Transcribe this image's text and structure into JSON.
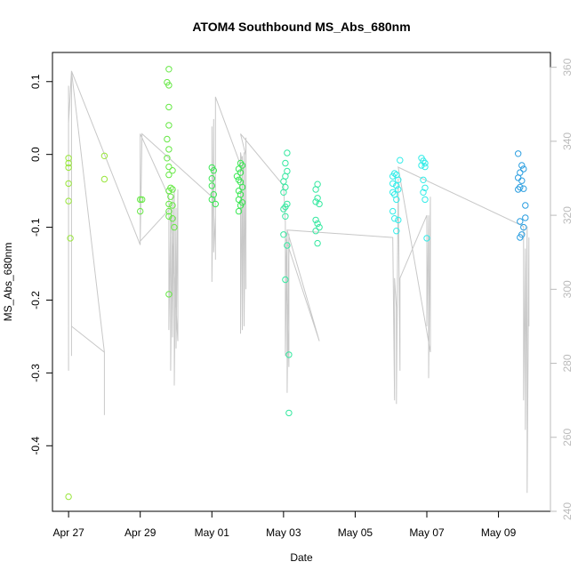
{
  "chart_data": {
    "type": "scatter",
    "title": "ATOM4 Southbound MS_Abs_680nm",
    "xlabel": "Date",
    "ylabel": "MS_Abs_680nm",
    "x_ticks": [
      "Apr 27",
      "Apr 29",
      "May 01",
      "May 03",
      "May 05",
      "May 07",
      "May 09"
    ],
    "x_tick_values": [
      0,
      2,
      4,
      6,
      8,
      10,
      12
    ],
    "xlim": [
      -0.45,
      13.45
    ],
    "ylim": [
      -0.49,
      0.14
    ],
    "y_ticks": [
      -0.4,
      -0.3,
      -0.2,
      -0.1,
      0.0,
      0.1
    ],
    "y_tick_labels": [
      "-0.4",
      "-0.3",
      "-0.2",
      "-0.1",
      "0.0",
      "0.1"
    ],
    "right_axis": {
      "ylim": [
        240,
        364
      ],
      "ticks": [
        240,
        260,
        280,
        300,
        320,
        340,
        360
      ],
      "color": "#bbbbbb"
    },
    "grid": false,
    "legend": "none",
    "series": [
      {
        "color": "#99e63c",
        "points": [
          [
            0.0,
            -0.005
          ],
          [
            0.0,
            -0.012
          ],
          [
            0.0,
            -0.018
          ],
          [
            0.0,
            -0.04
          ],
          [
            0.0,
            -0.064
          ],
          [
            0.05,
            -0.115
          ],
          [
            0.0,
            -0.47
          ],
          [
            1.0,
            -0.002
          ],
          [
            1.0,
            -0.034
          ]
        ]
      },
      {
        "color": "#66e845",
        "points": [
          [
            2.0,
            -0.062
          ],
          [
            2.05,
            -0.062
          ],
          [
            2.0,
            -0.078
          ],
          [
            2.8,
            0.117
          ],
          [
            2.75,
            0.099
          ],
          [
            2.8,
            0.095
          ],
          [
            2.8,
            0.065
          ],
          [
            2.8,
            0.04
          ],
          [
            2.75,
            0.021
          ],
          [
            2.8,
            0.007
          ],
          [
            2.75,
            -0.005
          ],
          [
            2.8,
            -0.017
          ],
          [
            2.9,
            -0.022
          ],
          [
            2.8,
            -0.028
          ],
          [
            2.85,
            -0.046
          ],
          [
            2.8,
            -0.05
          ],
          [
            2.9,
            -0.048
          ],
          [
            2.85,
            -0.058
          ],
          [
            2.8,
            -0.068
          ],
          [
            2.9,
            -0.07
          ],
          [
            2.8,
            -0.085
          ],
          [
            2.9,
            -0.088
          ],
          [
            2.8,
            -0.078
          ],
          [
            2.95,
            -0.1
          ],
          [
            2.8,
            -0.192
          ]
        ]
      },
      {
        "color": "#3ce855",
        "points": [
          [
            4.0,
            -0.018
          ],
          [
            4.05,
            -0.022
          ],
          [
            4.0,
            -0.033
          ],
          [
            4.0,
            -0.043
          ],
          [
            4.05,
            -0.055
          ],
          [
            4.0,
            -0.062
          ],
          [
            4.1,
            -0.068
          ],
          [
            4.8,
            -0.012
          ],
          [
            4.85,
            -0.015
          ],
          [
            4.75,
            -0.02
          ],
          [
            4.8,
            -0.025
          ],
          [
            4.7,
            -0.03
          ],
          [
            4.75,
            -0.035
          ],
          [
            4.8,
            -0.038
          ],
          [
            4.85,
            -0.045
          ],
          [
            4.75,
            -0.05
          ],
          [
            4.8,
            -0.055
          ],
          [
            4.75,
            -0.062
          ],
          [
            4.85,
            -0.066
          ],
          [
            4.8,
            -0.07
          ],
          [
            4.75,
            -0.078
          ]
        ]
      },
      {
        "color": "#35e8a0",
        "points": [
          [
            6.1,
            0.002
          ],
          [
            6.05,
            -0.012
          ],
          [
            6.1,
            -0.023
          ],
          [
            6.05,
            -0.03
          ],
          [
            6.0,
            -0.037
          ],
          [
            6.05,
            -0.045
          ],
          [
            6.0,
            -0.052
          ],
          [
            6.1,
            -0.068
          ],
          [
            6.05,
            -0.072
          ],
          [
            6.0,
            -0.075
          ],
          [
            6.05,
            -0.085
          ],
          [
            6.0,
            -0.11
          ],
          [
            6.1,
            -0.125
          ],
          [
            6.05,
            -0.172
          ],
          [
            6.15,
            -0.275
          ],
          [
            6.15,
            -0.355
          ],
          [
            6.95,
            -0.041
          ],
          [
            6.9,
            -0.048
          ],
          [
            6.95,
            -0.06
          ],
          [
            6.9,
            -0.065
          ],
          [
            7.0,
            -0.068
          ],
          [
            6.9,
            -0.09
          ],
          [
            6.95,
            -0.095
          ],
          [
            7.0,
            -0.1
          ],
          [
            6.9,
            -0.105
          ],
          [
            6.95,
            -0.122
          ]
        ]
      },
      {
        "color": "#33ece8",
        "points": [
          [
            9.1,
            -0.026
          ],
          [
            9.15,
            -0.028
          ],
          [
            9.05,
            -0.03
          ],
          [
            9.2,
            -0.035
          ],
          [
            9.05,
            -0.04
          ],
          [
            9.15,
            -0.043
          ],
          [
            9.2,
            -0.048
          ],
          [
            9.05,
            -0.052
          ],
          [
            9.1,
            -0.055
          ],
          [
            9.15,
            -0.062
          ],
          [
            9.05,
            -0.078
          ],
          [
            9.1,
            -0.088
          ],
          [
            9.2,
            -0.09
          ],
          [
            9.15,
            -0.105
          ],
          [
            9.25,
            -0.008
          ],
          [
            9.85,
            -0.005
          ],
          [
            9.9,
            -0.009
          ],
          [
            9.95,
            -0.012
          ],
          [
            9.85,
            -0.015
          ],
          [
            9.95,
            -0.017
          ],
          [
            9.9,
            -0.035
          ],
          [
            9.95,
            -0.046
          ],
          [
            9.9,
            -0.052
          ],
          [
            9.95,
            -0.062
          ],
          [
            10.0,
            -0.115
          ]
        ]
      },
      {
        "color": "#2a9ee0",
        "points": [
          [
            12.55,
            0.001
          ],
          [
            12.65,
            -0.015
          ],
          [
            12.7,
            -0.02
          ],
          [
            12.6,
            -0.025
          ],
          [
            12.55,
            -0.032
          ],
          [
            12.65,
            -0.036
          ],
          [
            12.6,
            -0.045
          ],
          [
            12.7,
            -0.047
          ],
          [
            12.55,
            -0.048
          ],
          [
            12.75,
            -0.07
          ],
          [
            12.75,
            -0.087
          ],
          [
            12.6,
            -0.092
          ],
          [
            12.7,
            -0.1
          ],
          [
            12.65,
            -0.11
          ],
          [
            12.6,
            -0.114
          ]
        ]
      }
    ],
    "line_series": {
      "axis": "right",
      "color": "#c8c8c8",
      "points": [
        [
          0.0,
          294
        ],
        [
          0.0,
          355
        ],
        [
          0.0,
          278
        ],
        [
          0.0,
          290
        ],
        [
          0.0,
          345
        ],
        [
          0.08,
          359
        ],
        [
          0.08,
          282
        ],
        [
          0.08,
          290
        ],
        [
          1.0,
          283
        ],
        [
          1.0,
          266
        ],
        [
          1.0,
          283
        ],
        [
          0.08,
          359
        ],
        [
          2.0,
          312
        ],
        [
          2.0,
          342
        ],
        [
          2.8,
          325
        ],
        [
          2.8,
          289
        ],
        [
          2.85,
          320
        ],
        [
          2.85,
          278
        ],
        [
          2.9,
          325
        ],
        [
          2.9,
          287
        ],
        [
          2.95,
          327
        ],
        [
          2.95,
          274
        ],
        [
          3.0,
          322
        ],
        [
          3.0,
          284
        ],
        [
          3.05,
          327
        ],
        [
          3.05,
          286
        ],
        [
          2.85,
          322
        ],
        [
          2.0,
          313
        ],
        [
          2.05,
          342
        ],
        [
          4.0,
          325
        ],
        [
          4.0,
          344
        ],
        [
          4.0,
          302
        ],
        [
          4.05,
          346
        ],
        [
          4.05,
          310
        ],
        [
          4.1,
          320
        ],
        [
          4.1,
          308
        ],
        [
          4.1,
          352
        ],
        [
          4.9,
          331
        ],
        [
          4.9,
          331
        ],
        [
          4.8,
          337
        ],
        [
          4.8,
          288
        ],
        [
          4.85,
          336
        ],
        [
          4.85,
          289
        ],
        [
          4.9,
          337
        ],
        [
          4.9,
          290
        ],
        [
          4.95,
          341
        ],
        [
          4.95,
          300
        ],
        [
          4.95,
          336
        ],
        [
          4.8,
          342
        ],
        [
          6.0,
          328
        ],
        [
          6.05,
          318
        ],
        [
          6.05,
          282
        ],
        [
          6.1,
          316
        ],
        [
          6.1,
          272
        ],
        [
          6.15,
          315
        ],
        [
          6.15,
          279
        ],
        [
          6.05,
          314
        ],
        [
          7.0,
          286
        ],
        [
          6.1,
          316
        ],
        [
          9.05,
          314
        ],
        [
          9.1,
          270
        ],
        [
          9.1,
          303
        ],
        [
          9.15,
          295
        ],
        [
          9.15,
          269
        ],
        [
          9.2,
          330
        ],
        [
          9.25,
          278
        ],
        [
          9.25,
          303
        ],
        [
          10.0,
          320
        ],
        [
          10.0,
          290
        ],
        [
          10.05,
          320
        ],
        [
          10.05,
          276
        ],
        [
          10.1,
          325
        ],
        [
          10.1,
          283
        ],
        [
          9.2,
          333
        ],
        [
          12.7,
          317
        ],
        [
          12.7,
          270
        ],
        [
          12.75,
          311
        ],
        [
          12.75,
          262
        ],
        [
          12.8,
          317
        ],
        [
          12.8,
          245
        ],
        [
          12.85,
          314
        ],
        [
          12.85,
          290
        ]
      ]
    }
  }
}
